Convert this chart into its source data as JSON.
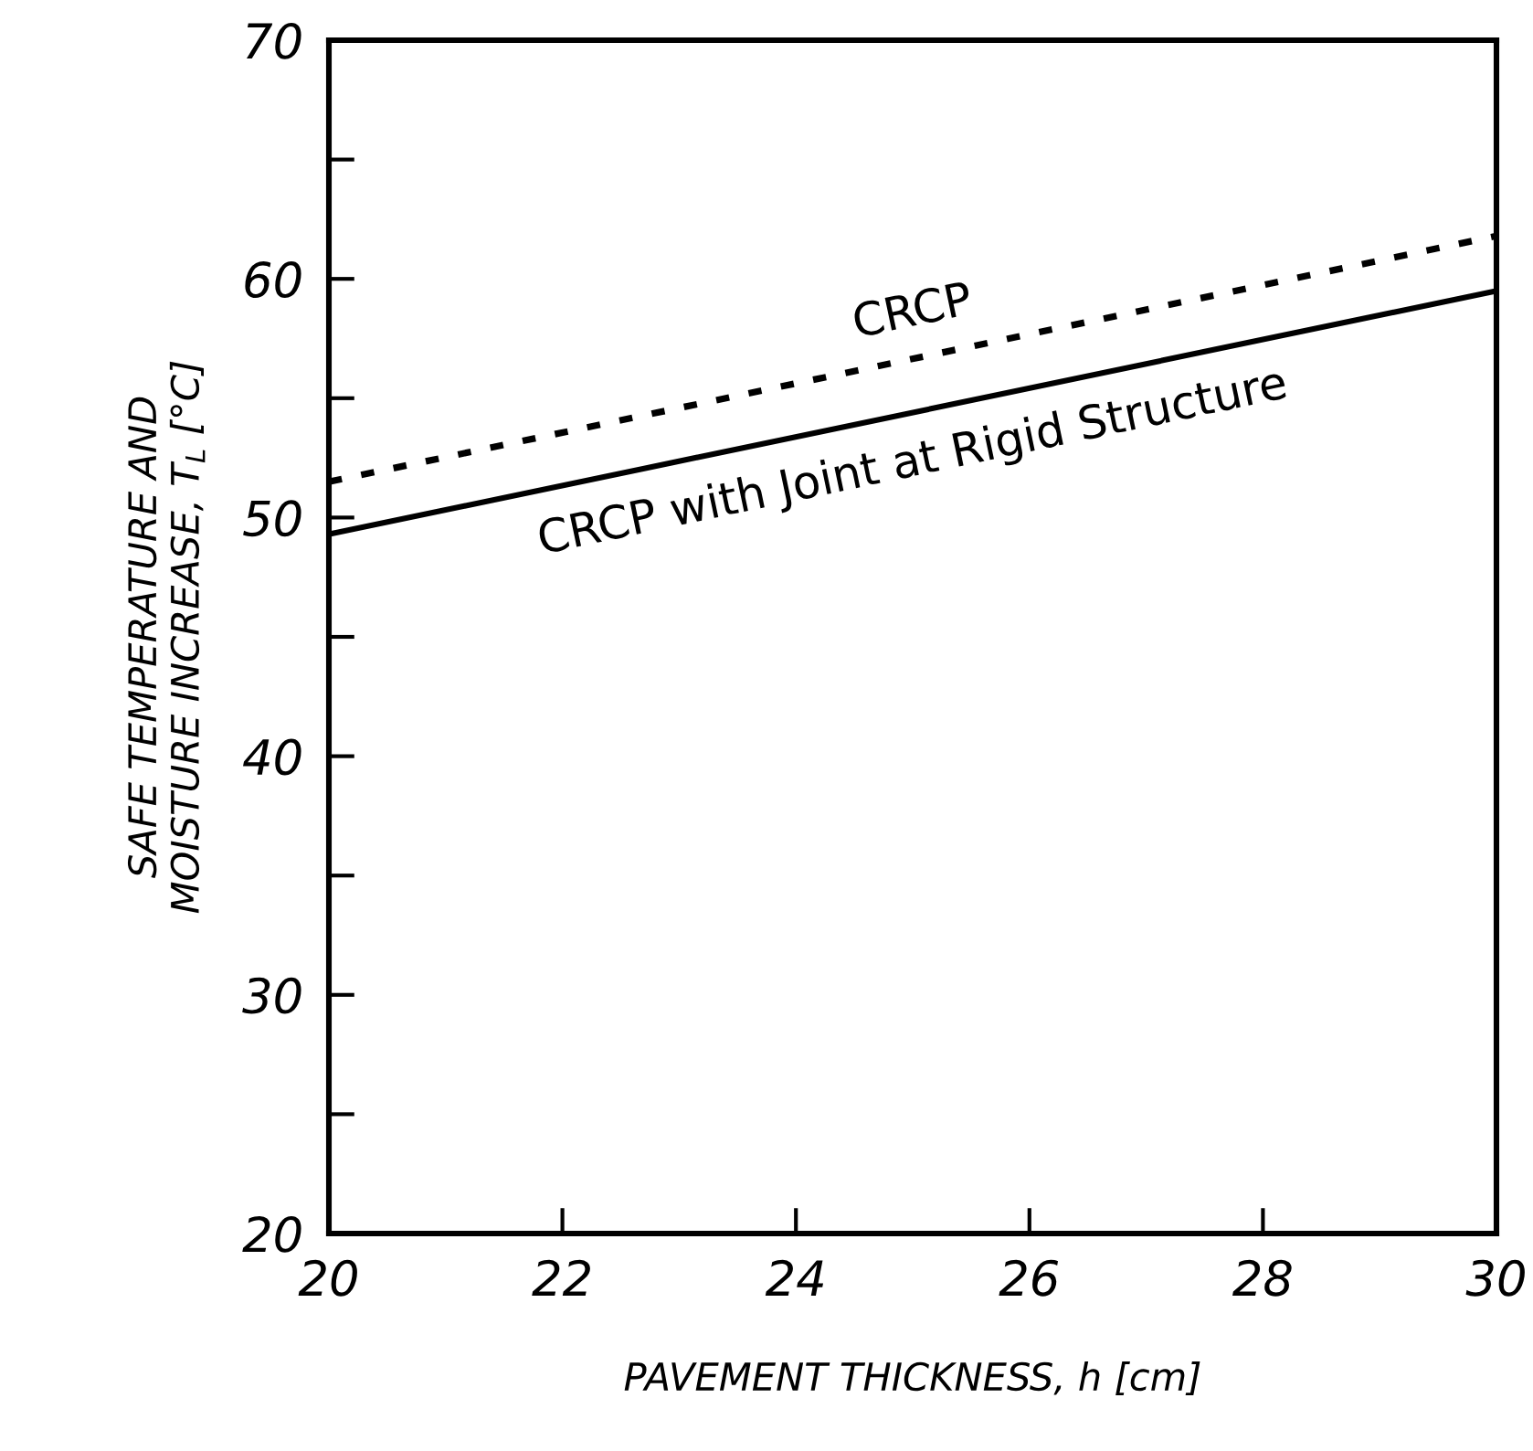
{
  "chart_data": {
    "type": "line",
    "xlabel": "PAVEMENT THICKNESS, h [cm]",
    "ylabel": "SAFE TEMPERATURE AND\nMOISTURE INCREASE, T$_{L}$ [°C]",
    "x": [
      20,
      30
    ],
    "series": [
      {
        "name": "CRCP",
        "values": [
          51.5,
          61.8
        ],
        "color": "#000000",
        "line_style": "dotted"
      },
      {
        "name": "CRCP with Joint at Rigid Structure",
        "values": [
          49.3,
          59.5
        ],
        "color": "#000000",
        "line_style": "solid"
      }
    ],
    "xlim": [
      20,
      30
    ],
    "ylim": [
      20,
      70
    ],
    "xticks": [
      20,
      22,
      24,
      26,
      28,
      30
    ],
    "yticks": [
      20,
      {
        "value": 25,
        "label": null
      },
      30,
      {
        "value": 35,
        "label": null
      },
      40,
      {
        "value": 45,
        "label": null
      },
      50,
      {
        "value": 55,
        "label": null
      },
      60,
      {
        "value": 65,
        "label": null
      },
      70
    ],
    "grid": false,
    "legend": false,
    "marker": "none"
  }
}
